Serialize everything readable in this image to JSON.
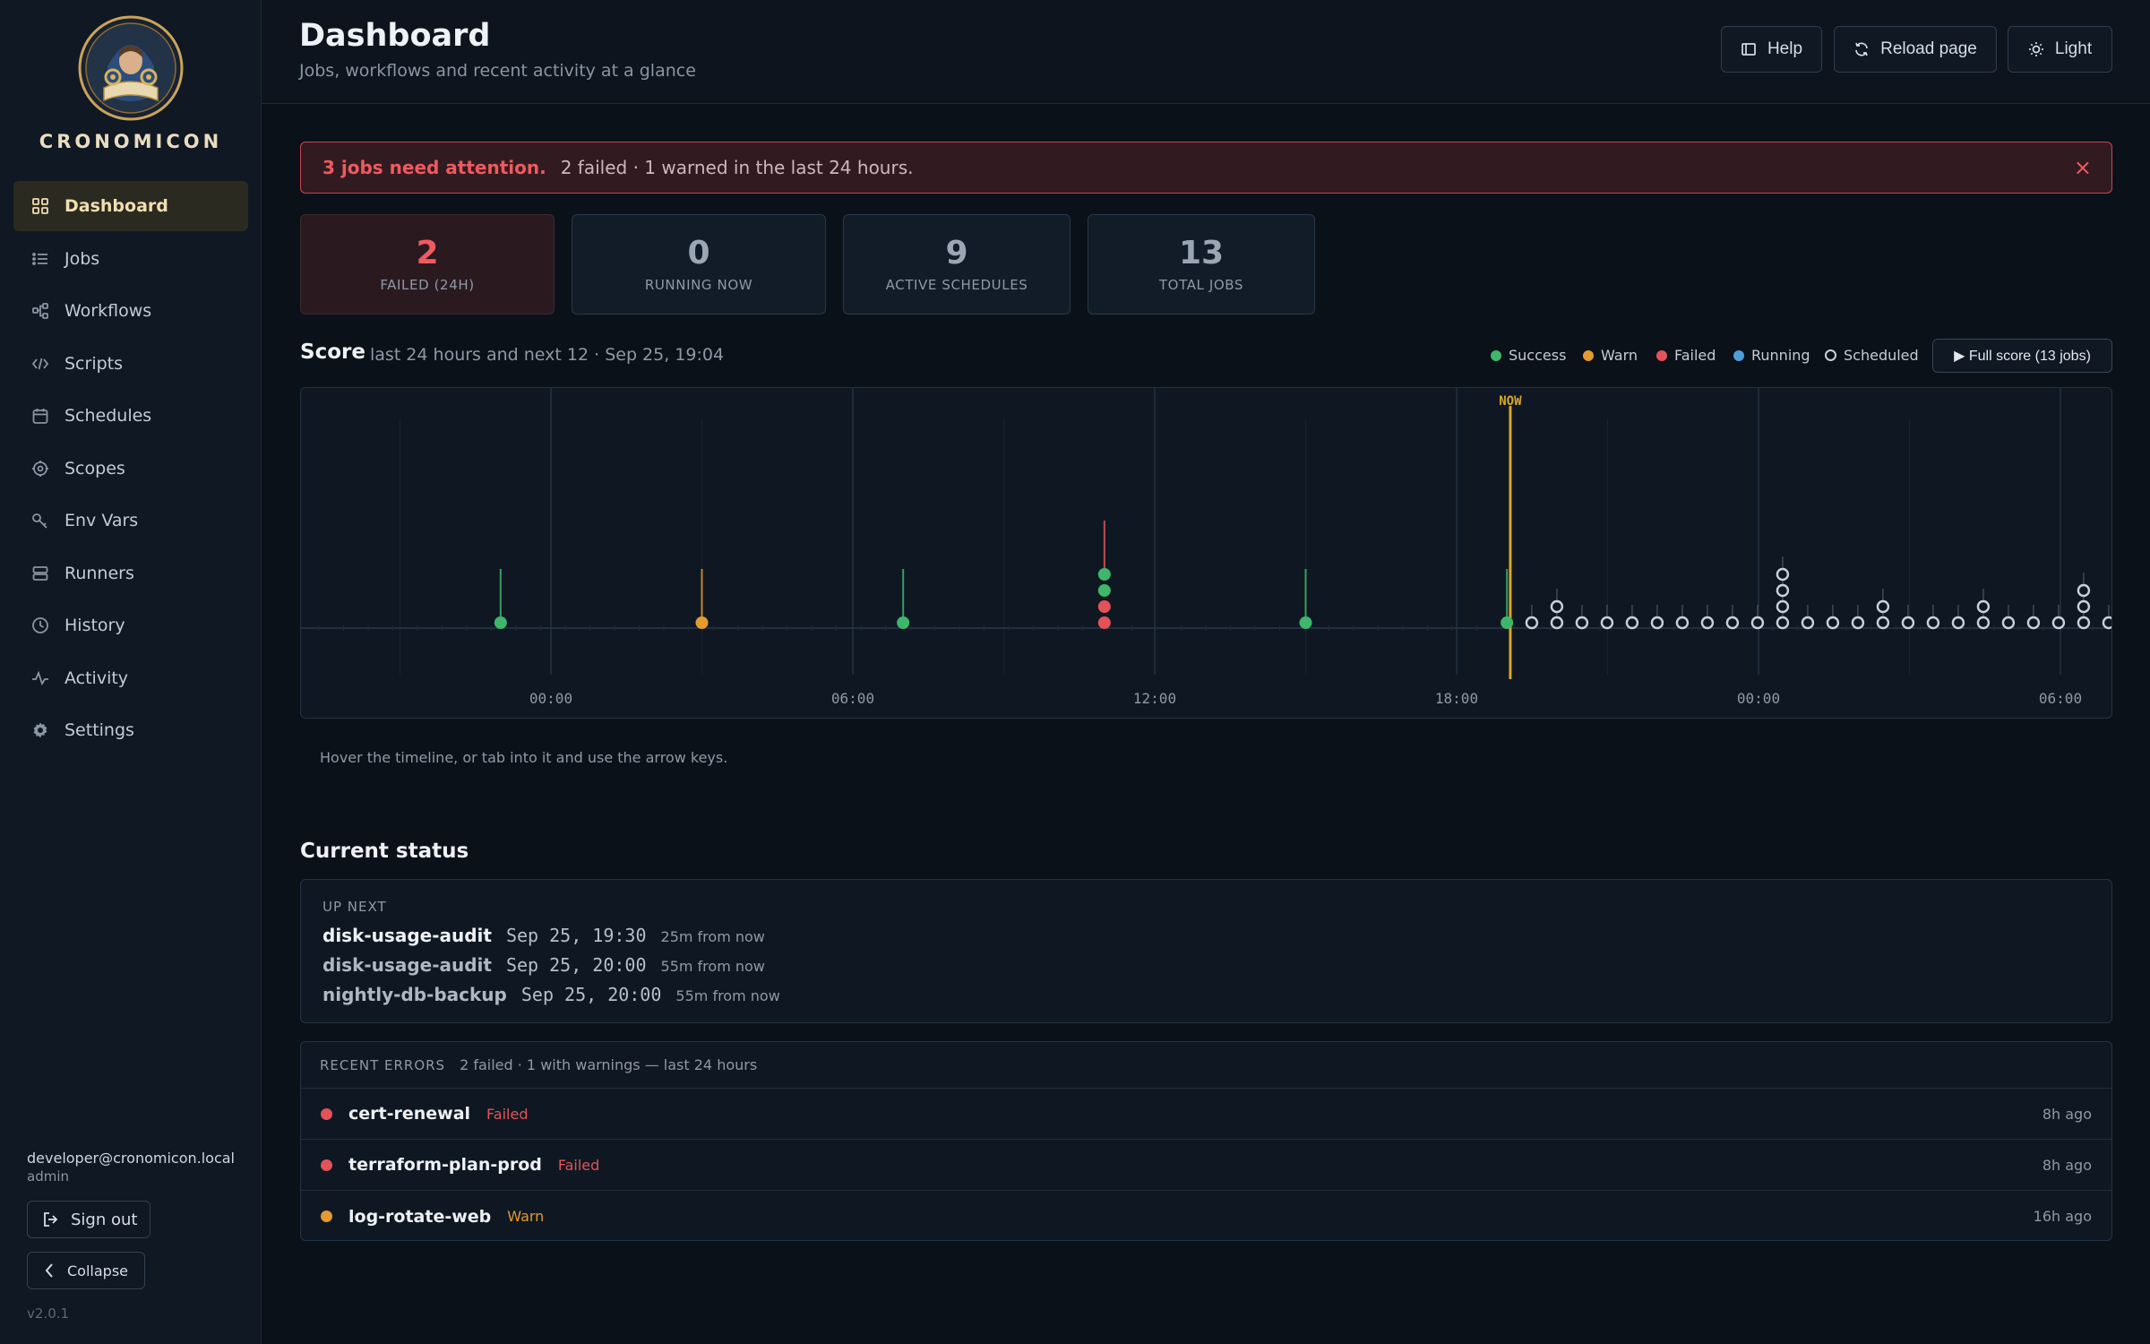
{
  "app": {
    "brand": "CRONOMICON",
    "version": "v2.0.1"
  },
  "sidebar": {
    "items": [
      {
        "label": "Dashboard",
        "icon": "grid-icon",
        "active": true
      },
      {
        "label": "Jobs",
        "icon": "list-icon"
      },
      {
        "label": "Workflows",
        "icon": "workflow-icon"
      },
      {
        "label": "Scripts",
        "icon": "code-icon"
      },
      {
        "label": "Schedules",
        "icon": "calendar-icon"
      },
      {
        "label": "Scopes",
        "icon": "target-icon"
      },
      {
        "label": "Env Vars",
        "icon": "key-icon"
      },
      {
        "label": "Runners",
        "icon": "server-icon"
      },
      {
        "label": "History",
        "icon": "clock-icon"
      },
      {
        "label": "Activity",
        "icon": "pulse-icon"
      },
      {
        "label": "Settings",
        "icon": "gear-icon"
      }
    ],
    "user": {
      "email": "developer@cronomicon.local",
      "role": "admin"
    },
    "sign_out_label": "Sign out",
    "collapse_label": "Collapse"
  },
  "header": {
    "title": "Dashboard",
    "subtitle": "Jobs, workflows and recent activity at a glance",
    "help_label": "Help",
    "reload_label": "Reload page",
    "theme_label": "Light"
  },
  "alert": {
    "strong": "3 jobs need attention.",
    "text": "2 failed · 1 warned in the last 24 hours.",
    "close": "×"
  },
  "stats": [
    {
      "value": "2",
      "label": "FAILED (24H)"
    },
    {
      "value": "0",
      "label": "RUNNING NOW"
    },
    {
      "value": "9",
      "label": "ACTIVE SCHEDULES"
    },
    {
      "value": "13",
      "label": "TOTAL JOBS"
    }
  ],
  "score": {
    "title": "Score",
    "subtitle": "last 24 hours and next 12 · Sep 25, 19:04",
    "legend": [
      {
        "label": "Success",
        "color": "#3fb66b"
      },
      {
        "label": "Warn",
        "color": "#e29a31"
      },
      {
        "label": "Failed",
        "color": "#e25359"
      },
      {
        "label": "Running",
        "color": "#4e9ed8"
      },
      {
        "label": "Scheduled",
        "color": "#c8d0da"
      }
    ],
    "full_score_label": "▶ Full score (13 jobs)",
    "now_label": "NOW",
    "ticks": [
      "00:00",
      "06:00",
      "12:00",
      "18:00",
      "00:00",
      "06:00"
    ],
    "hint": "Hover the timeline, or tab into it and use the arrow keys.",
    "past_events": [
      {
        "time": "Sep 24 23:00",
        "stack": [
          "success"
        ]
      },
      {
        "time": "Sep 25 03:00",
        "stack": [
          "warn"
        ]
      },
      {
        "time": "Sep 25 07:00",
        "stack": [
          "success"
        ]
      },
      {
        "time": "Sep 25 11:00",
        "stack": [
          "failed",
          "failed",
          "success",
          "success"
        ]
      },
      {
        "time": "Sep 25 15:00",
        "stack": [
          "success"
        ]
      },
      {
        "time": "Sep 25 19:00",
        "stack": [
          "success"
        ]
      }
    ]
  },
  "current_status": {
    "title": "Current status",
    "up_next_label": "UP NEXT",
    "up_next": [
      {
        "name": "disk-usage-audit",
        "time": "Sep 25, 19:30",
        "relative": "25m from now"
      },
      {
        "name": "disk-usage-audit",
        "time": "Sep 25, 20:00",
        "relative": "55m from now"
      },
      {
        "name": "nightly-db-backup",
        "time": "Sep 25, 20:00",
        "relative": "55m from now"
      }
    ],
    "recent_errors_label": "RECENT ERRORS",
    "recent_errors_sub": "2 failed · 1 with warnings — last 24 hours",
    "errors": [
      {
        "name": "cert-renewal",
        "status": "Failed",
        "ago": "8h ago",
        "color": "#e25359"
      },
      {
        "name": "terraform-plan-prod",
        "status": "Failed",
        "ago": "8h ago",
        "color": "#e25359"
      },
      {
        "name": "log-rotate-web",
        "status": "Warn",
        "ago": "16h ago",
        "color": "#e29a31"
      }
    ]
  }
}
